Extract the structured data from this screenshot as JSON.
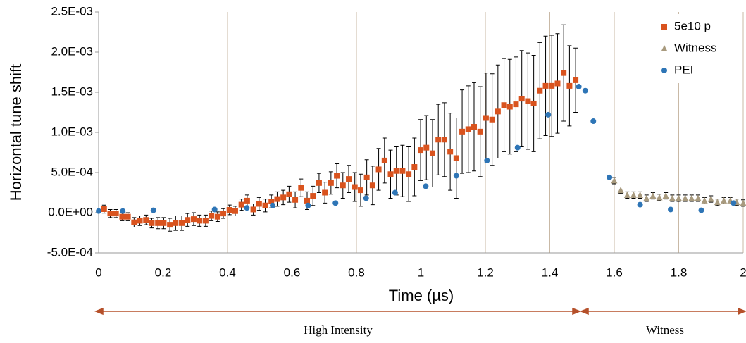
{
  "chart_data": {
    "type": "scatter",
    "x_label": "Time (µs)",
    "y_label": "Horizontal tune shift",
    "xlim": [
      0,
      2
    ],
    "xticks": [
      0,
      0.2,
      0.4,
      0.6,
      0.8,
      1,
      1.2,
      1.4,
      1.6,
      1.8,
      2
    ],
    "ylim": [
      -0.0005,
      0.0025
    ],
    "yticks": [
      {
        "value": -0.0005,
        "label": "-5.0E-04"
      },
      {
        "value": 0,
        "label": "0.0E+00"
      },
      {
        "value": 0.0005,
        "label": "5.0E-04"
      },
      {
        "value": 0.001,
        "label": "1.0E-03"
      },
      {
        "value": 0.0015,
        "label": "1.5E-03"
      },
      {
        "value": 0.002,
        "label": "2.0E-03"
      },
      {
        "value": 0.0025,
        "label": "2.5E-03"
      }
    ],
    "grid": "x",
    "legend": "top-right",
    "series": [
      {
        "name": "5e10 p",
        "color": "#d9531e",
        "marker": "square",
        "x": [
          0.017,
          0.036,
          0.054,
          0.073,
          0.091,
          0.11,
          0.128,
          0.147,
          0.165,
          0.184,
          0.202,
          0.221,
          0.239,
          0.258,
          0.276,
          0.295,
          0.313,
          0.332,
          0.35,
          0.369,
          0.387,
          0.406,
          0.424,
          0.443,
          0.461,
          0.48,
          0.498,
          0.517,
          0.536,
          0.554,
          0.573,
          0.591,
          0.61,
          0.628,
          0.647,
          0.665,
          0.684,
          0.702,
          0.721,
          0.739,
          0.758,
          0.776,
          0.795,
          0.813,
          0.832,
          0.85,
          0.869,
          0.887,
          0.906,
          0.924,
          0.943,
          0.962,
          0.98,
          0.999,
          1.017,
          1.036,
          1.054,
          1.073,
          1.091,
          1.11,
          1.128,
          1.147,
          1.165,
          1.184,
          1.202,
          1.221,
          1.239,
          1.258,
          1.276,
          1.295,
          1.313,
          1.332,
          1.35,
          1.369,
          1.387,
          1.406,
          1.424,
          1.443,
          1.461,
          1.48
        ],
        "values": [
          4.4e-05,
          -1e-05,
          -1e-05,
          -5e-05,
          -5e-05,
          -0.00012,
          -0.0001,
          -9e-05,
          -0.00013,
          -0.00013,
          -0.00013,
          -0.00015,
          -0.00013,
          -0.00013,
          -9e-05,
          -8e-05,
          -0.0001,
          -0.0001,
          -4e-05,
          -5e-05,
          -1e-05,
          3.5e-05,
          2e-05,
          0.0001,
          0.00015,
          4e-05,
          0.00011,
          9e-05,
          0.00014,
          0.00017,
          0.00019,
          0.00023,
          0.00016,
          0.00031,
          0.00015,
          0.00021,
          0.00037,
          0.00025,
          0.00037,
          0.00046,
          0.00034,
          0.00042,
          0.00032,
          0.00028,
          0.00044,
          0.00034,
          0.00054,
          0.00065,
          0.00048,
          0.00052,
          0.00052,
          0.00048,
          0.00057,
          0.00078,
          0.00081,
          0.00074,
          0.00091,
          0.00091,
          0.00076,
          0.00068,
          0.00101,
          0.00104,
          0.00107,
          0.00101,
          0.00118,
          0.00116,
          0.00126,
          0.00134,
          0.00132,
          0.00135,
          0.00142,
          0.00139,
          0.00136,
          0.00152,
          0.00158,
          0.00158,
          0.00161,
          0.00174,
          0.00158,
          0.00165
        ],
        "errors": [
          5e-05,
          5e-05,
          5e-05,
          5e-05,
          5e-05,
          6e-05,
          6e-05,
          6e-05,
          6e-05,
          7e-05,
          7e-05,
          8e-05,
          9e-05,
          9e-05,
          8e-05,
          8e-05,
          7e-05,
          7e-05,
          6e-05,
          6e-05,
          6e-05,
          6e-05,
          6e-05,
          7e-05,
          7e-05,
          7e-05,
          8e-05,
          8e-05,
          8e-05,
          9e-05,
          9e-05,
          0.0001,
          0.0001,
          0.00011,
          0.00011,
          0.00012,
          0.00012,
          0.00013,
          0.00014,
          0.00015,
          0.00016,
          0.00017,
          0.00018,
          0.0002,
          0.00022,
          0.00024,
          0.00026,
          0.00028,
          0.0003,
          0.0003,
          0.00032,
          0.00034,
          0.00036,
          0.00038,
          0.0004,
          0.00042,
          0.00044,
          0.00046,
          0.00048,
          0.0005,
          0.00052,
          0.00054,
          0.00055,
          0.00056,
          0.00056,
          0.00057,
          0.00058,
          0.00058,
          0.00059,
          0.00059,
          0.0006,
          0.0006,
          0.0006,
          0.0006,
          0.00062,
          0.00063,
          0.00062,
          0.0006,
          0.0005,
          0.0004
        ]
      },
      {
        "name": "Witness",
        "color": "#a89a7e",
        "marker": "triangle",
        "x": [
          1.6,
          1.62,
          1.64,
          1.66,
          1.68,
          1.7,
          1.72,
          1.74,
          1.76,
          1.78,
          1.8,
          1.82,
          1.84,
          1.86,
          1.88,
          1.9,
          1.92,
          1.94,
          1.96,
          1.98,
          2.0
        ],
        "values": [
          0.0004,
          0.00028,
          0.00022,
          0.00022,
          0.00022,
          0.00018,
          0.00021,
          0.00019,
          0.00021,
          0.00018,
          0.00018,
          0.00018,
          0.00018,
          0.00018,
          0.00015,
          0.00017,
          0.00013,
          0.00015,
          0.00015,
          0.00013,
          0.00012
        ],
        "errors": [
          4e-05,
          4e-05,
          4e-05,
          4e-05,
          4e-05,
          4e-05,
          4e-05,
          4e-05,
          4e-05,
          4e-05,
          4e-05,
          4e-05,
          4e-05,
          4e-05,
          4e-05,
          4e-05,
          4e-05,
          4e-05,
          4e-05,
          4e-05,
          4e-05
        ]
      },
      {
        "name": "PEI",
        "color": "#2e75b6",
        "marker": "circle",
        "x": [
          0.0,
          0.075,
          0.17,
          0.36,
          0.46,
          0.54,
          0.65,
          0.735,
          0.83,
          0.92,
          1.015,
          1.11,
          1.205,
          1.3,
          1.395,
          1.49,
          1.51,
          1.535,
          1.585,
          1.68,
          1.775,
          1.87,
          1.97
        ],
        "values": [
          2e-05,
          2e-05,
          3e-05,
          4e-05,
          6e-05,
          9e-05,
          9e-05,
          0.00012,
          0.00018,
          0.00025,
          0.00033,
          0.00046,
          0.00065,
          0.00081,
          0.00122,
          0.00157,
          0.00152,
          0.00114,
          0.00044,
          0.0001,
          4e-05,
          3e-05,
          0.00012
        ]
      }
    ],
    "annotations": [
      "High Intensity",
      "Witness"
    ]
  }
}
